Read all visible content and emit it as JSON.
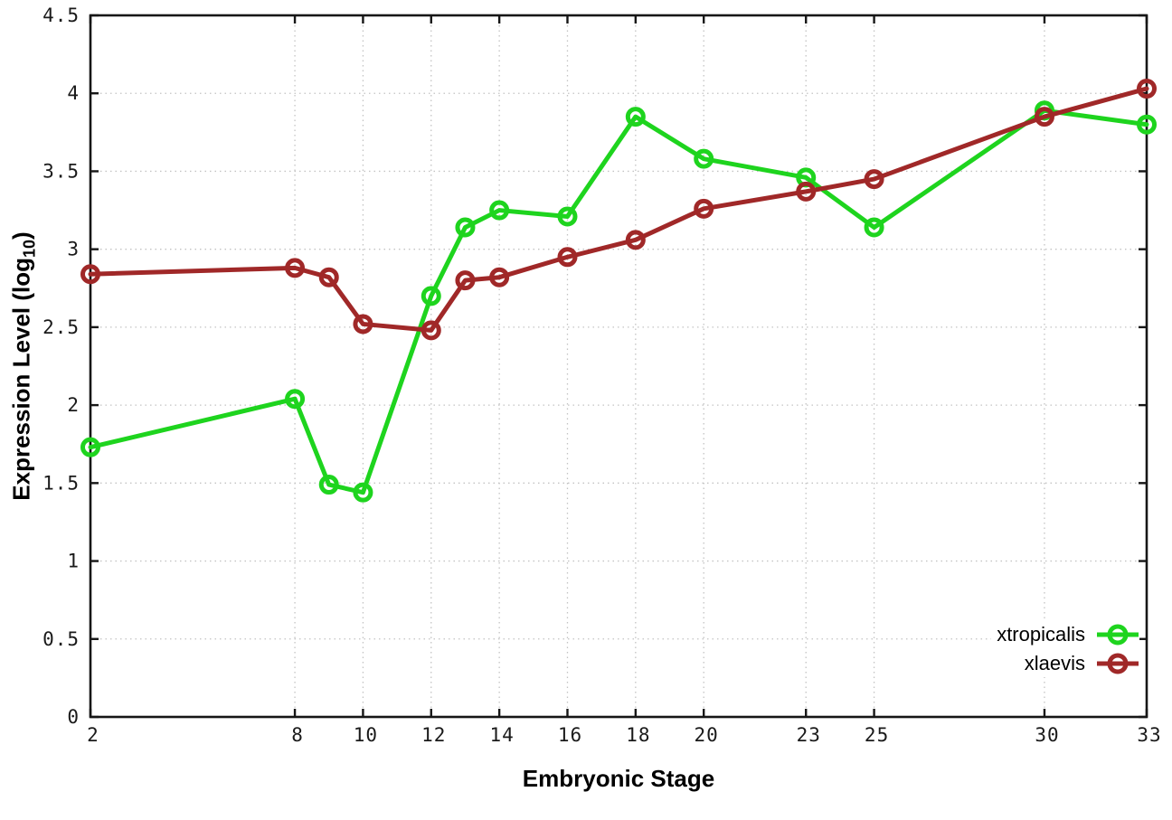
{
  "figure": {
    "background": "#ffffff",
    "border_color": "#161616",
    "grid_color": "#c3c3c3",
    "tick_label_color": "#1a1a1a"
  },
  "axes": {
    "x_title": "Embryonic Stage",
    "y_title_prefix": "Expression Level (log",
    "y_title_sub": "10",
    "y_title_suffix": ")"
  },
  "chart_data": {
    "type": "line",
    "title": "",
    "xlabel": "Embryonic Stage",
    "ylabel": "Expression Level (log10)",
    "xlim": [
      2,
      33
    ],
    "ylim": [
      0,
      4.5
    ],
    "x_ticks": [
      2,
      8,
      10,
      12,
      14,
      16,
      18,
      20,
      23,
      25,
      30,
      33
    ],
    "y_ticks": [
      0,
      0.5,
      1,
      1.5,
      2,
      2.5,
      3,
      3.5,
      4,
      4.5
    ],
    "grid": true,
    "grid_style": "dotted",
    "legend_position": "inside-bottom-right",
    "marker": "open-circle",
    "x": [
      2,
      8,
      9,
      10,
      12,
      13,
      14,
      16,
      18,
      20,
      23,
      25,
      30,
      33
    ],
    "series": [
      {
        "name": "xtropicalis",
        "color": "#1ed41e",
        "values": [
          1.73,
          2.04,
          1.49,
          1.44,
          2.7,
          3.14,
          3.25,
          3.21,
          3.85,
          3.58,
          3.46,
          3.14,
          3.89,
          3.8
        ]
      },
      {
        "name": "xlaevis",
        "color": "#a02828",
        "values": [
          2.84,
          2.88,
          2.82,
          2.52,
          2.48,
          2.8,
          2.82,
          2.95,
          3.06,
          3.26,
          3.37,
          3.45,
          3.85,
          4.03
        ]
      }
    ]
  }
}
